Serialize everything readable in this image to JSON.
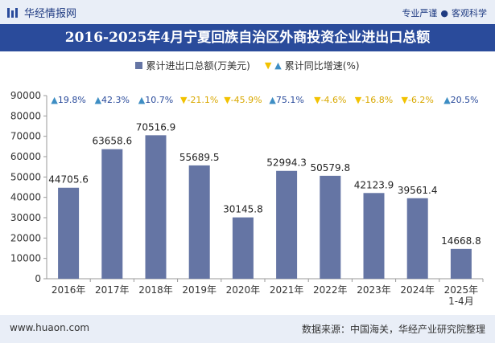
{
  "header": {
    "site_name": "华经情报网",
    "tagline_left": "专业严谨",
    "tagline_right": "客观科学",
    "tagline_sep": "●"
  },
  "title": "2016-2025年4月宁夏回族自治区外商投资企业进出口总额",
  "legend": {
    "bar_label": "累计进出口总额(万美元)",
    "growth_label": "累计同比增速(%)"
  },
  "colors": {
    "bar": "#6575a4",
    "title_bg": "#2a4b9b",
    "up": "#3e8ec4",
    "down": "#f2c200"
  },
  "chart_data": {
    "type": "bar",
    "categories": [
      "2016年",
      "2017年",
      "2018年",
      "2019年",
      "2020年",
      "2021年",
      "2022年",
      "2023年",
      "2024年",
      "2025年\n1-4月"
    ],
    "series": [
      {
        "name": "累计进出口总额(万美元)",
        "values": [
          44705.6,
          63658.6,
          70516.9,
          55689.5,
          30145.8,
          52994.3,
          50579.8,
          42123.9,
          39561.4,
          14668.8
        ]
      },
      {
        "name": "累计同比增速(%)",
        "values": [
          19.8,
          42.3,
          10.7,
          -21.1,
          -45.9,
          75.1,
          -4.6,
          -16.8,
          -6.2,
          20.5
        ]
      }
    ],
    "value_labels": [
      "44705.6",
      "63658.6",
      "70516.9",
      "55689.5",
      "30145.8",
      "52994.3",
      "50579.8",
      "42123.9",
      "39561.4",
      "14668.8"
    ],
    "growth_labels": [
      "19.8%",
      "42.3%",
      "10.7%",
      "-21.1%",
      "-45.9%",
      "75.1%",
      "-4.6%",
      "-16.8%",
      "-6.2%",
      "20.5%"
    ],
    "ylim": [
      0,
      90000
    ],
    "yticks": [
      0,
      10000,
      20000,
      30000,
      40000,
      50000,
      60000,
      70000,
      80000,
      90000
    ],
    "grid": false,
    "legend_position": "top-center"
  },
  "footer": {
    "url": "www.huaon.com",
    "source": "数据来源：中国海关，华经产业研究院整理"
  }
}
